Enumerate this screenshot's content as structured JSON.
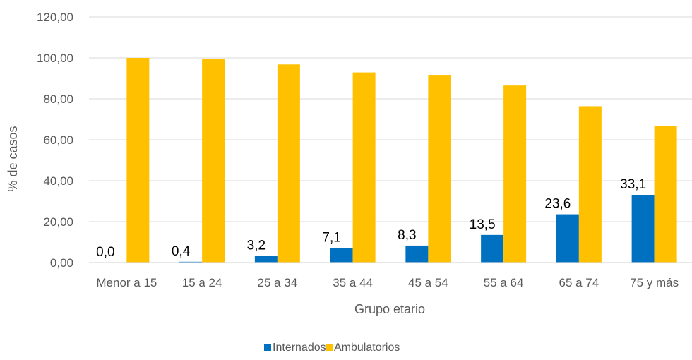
{
  "chart_data": {
    "type": "bar",
    "xlabel": "Grupo etario",
    "ylabel": "% de casos",
    "ylim": [
      0,
      120
    ],
    "yticks": [
      "0,00",
      "20,00",
      "40,00",
      "60,00",
      "80,00",
      "100,00",
      "120,00"
    ],
    "grid": true,
    "legend_position": "bottom",
    "categories": [
      "Menor a 15",
      "15 a 24",
      "25 a 34",
      "35 a 44",
      "45 a 54",
      "55 a 64",
      "65 a 74",
      "75 y más"
    ],
    "series": [
      {
        "name": "Internados",
        "color": "#0070C0",
        "values": [
          0.0,
          0.4,
          3.2,
          7.1,
          8.3,
          13.5,
          23.6,
          33.1
        ],
        "data_labels": [
          "0,0",
          "0,4",
          "3,2",
          "7,1",
          "8,3",
          "13,5",
          "23,6",
          "33,1"
        ]
      },
      {
        "name": "Ambulatorios",
        "color": "#FFC000",
        "values": [
          100.0,
          99.6,
          96.8,
          92.9,
          91.7,
          86.5,
          76.4,
          66.9
        ]
      }
    ]
  }
}
